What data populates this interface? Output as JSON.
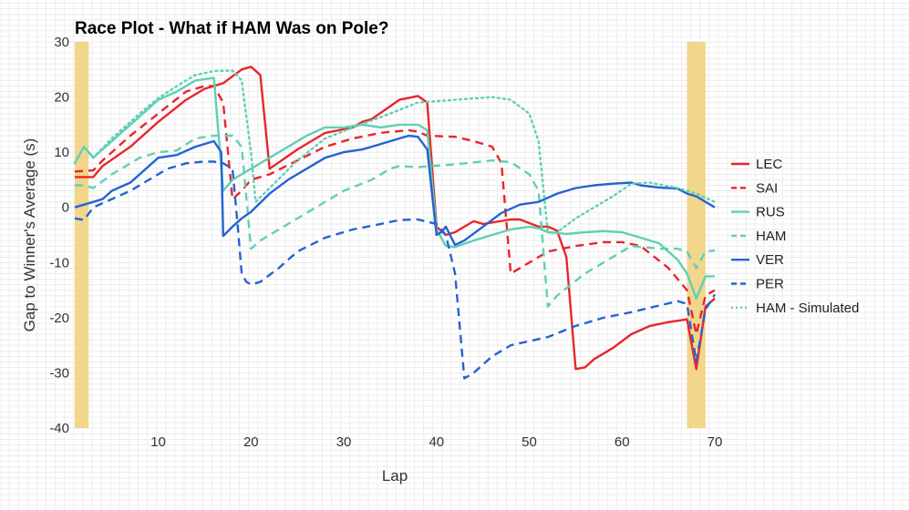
{
  "chart_data": {
    "type": "line",
    "title": "Race Plot - What if HAM Was on Pole?",
    "xlabel": "Lap",
    "ylabel": "Gap to Winner's Average (s)",
    "xlim": [
      1,
      70
    ],
    "ylim": [
      -40,
      30
    ],
    "xticks": [
      10,
      20,
      30,
      40,
      50,
      60,
      70
    ],
    "yticks": [
      30,
      20,
      10,
      0,
      -10,
      -20,
      -30,
      -40
    ],
    "grid": true,
    "legend_position": "right",
    "highlight_laps": [
      [
        1,
        2.5
      ],
      [
        67,
        69
      ]
    ],
    "highlight_color": "#f0d27e",
    "series": [
      {
        "name": "LEC",
        "color": "#e8262b",
        "style": "solid",
        "points": [
          [
            1,
            5.5
          ],
          [
            3,
            5.5
          ],
          [
            4,
            7.5
          ],
          [
            7,
            11
          ],
          [
            10,
            15.5
          ],
          [
            13,
            19.5
          ],
          [
            15,
            21.5
          ],
          [
            17,
            22.5
          ],
          [
            19,
            25
          ],
          [
            20,
            25.5
          ],
          [
            21,
            24
          ],
          [
            22,
            7
          ],
          [
            25,
            10.5
          ],
          [
            28,
            13.5
          ],
          [
            31,
            14.5
          ],
          [
            32,
            15.5
          ],
          [
            33,
            16
          ],
          [
            36,
            19.5
          ],
          [
            38,
            20.2
          ],
          [
            39,
            19
          ],
          [
            40,
            -3.5
          ],
          [
            41,
            -5
          ],
          [
            42,
            -4.5
          ],
          [
            43,
            -3.5
          ],
          [
            44,
            -2.5
          ],
          [
            45,
            -3
          ],
          [
            48,
            -2.2
          ],
          [
            49,
            -2.2
          ],
          [
            51,
            -3.5
          ],
          [
            52,
            -3.5
          ],
          [
            53,
            -4.2
          ],
          [
            54,
            -9
          ],
          [
            55,
            -29.3
          ],
          [
            56,
            -29
          ],
          [
            57,
            -27.5
          ],
          [
            59,
            -25.5
          ],
          [
            61,
            -23
          ],
          [
            63,
            -21.5
          ],
          [
            65,
            -20.8
          ],
          [
            67,
            -20.3
          ],
          [
            68,
            -29.3
          ],
          [
            69,
            -18
          ],
          [
            70,
            -16.5
          ]
        ]
      },
      {
        "name": "SAI",
        "color": "#e8262b",
        "style": "dashed",
        "points": [
          [
            1,
            6.5
          ],
          [
            3,
            6.7
          ],
          [
            4,
            8.5
          ],
          [
            7,
            13
          ],
          [
            10,
            17
          ],
          [
            13,
            21
          ],
          [
            15,
            22
          ],
          [
            16,
            22
          ],
          [
            17,
            19
          ],
          [
            18,
            1.5
          ],
          [
            19,
            3
          ],
          [
            20,
            5
          ],
          [
            22,
            6
          ],
          [
            25,
            8.5
          ],
          [
            28,
            11
          ],
          [
            31,
            12.5
          ],
          [
            34,
            13.5
          ],
          [
            37,
            14
          ],
          [
            38,
            13.7
          ],
          [
            39,
            13
          ],
          [
            42,
            12.8
          ],
          [
            44,
            12
          ],
          [
            46,
            11
          ],
          [
            47,
            8
          ],
          [
            48,
            -12
          ],
          [
            50,
            -10
          ],
          [
            52,
            -8
          ],
          [
            55,
            -7
          ],
          [
            58,
            -6.3
          ],
          [
            60,
            -6.3
          ],
          [
            62,
            -7
          ],
          [
            65,
            -11
          ],
          [
            67,
            -15
          ],
          [
            68,
            -23
          ],
          [
            69,
            -16
          ],
          [
            70,
            -15
          ]
        ]
      },
      {
        "name": "RUS",
        "color": "#5fd0b4",
        "style": "solid",
        "points": [
          [
            1,
            8
          ],
          [
            2,
            11
          ],
          [
            3,
            9
          ],
          [
            5,
            12
          ],
          [
            8,
            16.5
          ],
          [
            10,
            19.5
          ],
          [
            12,
            21
          ],
          [
            14,
            23
          ],
          [
            16,
            23.5
          ],
          [
            17,
            3
          ],
          [
            18,
            5
          ],
          [
            20,
            7
          ],
          [
            22,
            9
          ],
          [
            24,
            11
          ],
          [
            26,
            13
          ],
          [
            28,
            14.5
          ],
          [
            30,
            14.5
          ],
          [
            32,
            15
          ],
          [
            34,
            14.5
          ],
          [
            36,
            15
          ],
          [
            38,
            15
          ],
          [
            39,
            14
          ],
          [
            40,
            -4
          ],
          [
            41,
            -7
          ],
          [
            42,
            -7.2
          ],
          [
            44,
            -6
          ],
          [
            46,
            -5
          ],
          [
            48,
            -4
          ],
          [
            50,
            -3.5
          ],
          [
            51,
            -3.8
          ],
          [
            52,
            -4.5
          ],
          [
            54,
            -4.8
          ],
          [
            56,
            -4.5
          ],
          [
            58,
            -4.3
          ],
          [
            60,
            -4.5
          ],
          [
            62,
            -5.5
          ],
          [
            64,
            -6.5
          ],
          [
            66,
            -9.5
          ],
          [
            67,
            -12
          ],
          [
            68,
            -16.5
          ],
          [
            69,
            -12.5
          ],
          [
            70,
            -12.5
          ]
        ]
      },
      {
        "name": "HAM",
        "color": "#5fd0b4",
        "style": "dashed",
        "points": [
          [
            1,
            4
          ],
          [
            2,
            4
          ],
          [
            3,
            3.5
          ],
          [
            5,
            6
          ],
          [
            8,
            9
          ],
          [
            10,
            10
          ],
          [
            12,
            10.3
          ],
          [
            14,
            12.5
          ],
          [
            16,
            13
          ],
          [
            18,
            13
          ],
          [
            19,
            11
          ],
          [
            20,
            -7.5
          ],
          [
            21,
            -6
          ],
          [
            24,
            -3
          ],
          [
            27,
            0
          ],
          [
            30,
            3
          ],
          [
            33,
            5
          ],
          [
            35,
            7
          ],
          [
            36,
            7.5
          ],
          [
            38,
            7.3
          ],
          [
            42,
            7.8
          ],
          [
            46,
            8.5
          ],
          [
            48,
            8.2
          ],
          [
            50,
            6
          ],
          [
            51,
            3
          ],
          [
            52,
            -18
          ],
          [
            53,
            -16
          ],
          [
            56,
            -12
          ],
          [
            59,
            -9
          ],
          [
            61,
            -7
          ],
          [
            64,
            -7.5
          ],
          [
            66,
            -7.5
          ],
          [
            67,
            -8
          ],
          [
            68,
            -11
          ],
          [
            69,
            -8
          ],
          [
            70,
            -7.8
          ]
        ]
      },
      {
        "name": "VER",
        "color": "#2463d1",
        "style": "solid",
        "points": [
          [
            1,
            0
          ],
          [
            3,
            1
          ],
          [
            4,
            1.5
          ],
          [
            5,
            3
          ],
          [
            7,
            4.5
          ],
          [
            9,
            7.5
          ],
          [
            10,
            9
          ],
          [
            12,
            9.5
          ],
          [
            14,
            11
          ],
          [
            16,
            12
          ],
          [
            16.8,
            10
          ],
          [
            17,
            -5.2
          ],
          [
            18,
            -3.5
          ],
          [
            19,
            -2
          ],
          [
            20,
            -0.8
          ],
          [
            22,
            2.5
          ],
          [
            24,
            5
          ],
          [
            26,
            7
          ],
          [
            28,
            9
          ],
          [
            30,
            10
          ],
          [
            32,
            10.5
          ],
          [
            34,
            11.5
          ],
          [
            36,
            12.5
          ],
          [
            37,
            13
          ],
          [
            38,
            12.8
          ],
          [
            39,
            10.5
          ],
          [
            40,
            -5
          ],
          [
            40.5,
            -4.5
          ],
          [
            41,
            -3.5
          ],
          [
            42,
            -6.8
          ],
          [
            43,
            -6
          ],
          [
            45,
            -3.5
          ],
          [
            47,
            -1
          ],
          [
            49,
            0.5
          ],
          [
            51,
            1
          ],
          [
            53,
            2.5
          ],
          [
            55,
            3.5
          ],
          [
            57,
            4
          ],
          [
            59,
            4.3
          ],
          [
            61,
            4.5
          ],
          [
            62,
            4
          ],
          [
            64,
            3.6
          ],
          [
            66,
            3.4
          ],
          [
            67,
            2.5
          ],
          [
            68,
            2
          ],
          [
            70,
            0
          ]
        ]
      },
      {
        "name": "PER",
        "color": "#2463d1",
        "style": "dashed",
        "points": [
          [
            1,
            -2
          ],
          [
            2,
            -2.3
          ],
          [
            3,
            0
          ],
          [
            5,
            1.5
          ],
          [
            7,
            3
          ],
          [
            9,
            5
          ],
          [
            11,
            7
          ],
          [
            13,
            8
          ],
          [
            15,
            8.3
          ],
          [
            16,
            8.3
          ],
          [
            17,
            8
          ],
          [
            18,
            7
          ],
          [
            18.5,
            -2
          ],
          [
            19,
            -12
          ],
          [
            19.5,
            -13.5
          ],
          [
            20,
            -14
          ],
          [
            21,
            -13.5
          ],
          [
            23,
            -11
          ],
          [
            25,
            -8
          ],
          [
            28,
            -5.5
          ],
          [
            31,
            -4
          ],
          [
            34,
            -3
          ],
          [
            36,
            -2.3
          ],
          [
            38,
            -2.2
          ],
          [
            40,
            -3
          ],
          [
            41,
            -5
          ],
          [
            42,
            -12
          ],
          [
            43,
            -31
          ],
          [
            44,
            -30
          ],
          [
            46,
            -27
          ],
          [
            48,
            -25
          ],
          [
            52,
            -23.5
          ],
          [
            55,
            -21.5
          ],
          [
            58,
            -20
          ],
          [
            61,
            -19
          ],
          [
            64,
            -17.8
          ],
          [
            66,
            -17
          ],
          [
            67,
            -17.5
          ],
          [
            68,
            -28
          ],
          [
            69,
            -18.5
          ],
          [
            70,
            -15.8
          ]
        ]
      },
      {
        "name": "HAM - Simulated",
        "color": "#5fd0b4",
        "style": "dotted",
        "points": [
          [
            1,
            8
          ],
          [
            2,
            11
          ],
          [
            3,
            9
          ],
          [
            5,
            12.5
          ],
          [
            8,
            17
          ],
          [
            10,
            19.8
          ],
          [
            12,
            22
          ],
          [
            14,
            24
          ],
          [
            16,
            24.7
          ],
          [
            18,
            24.8
          ],
          [
            19,
            23
          ],
          [
            20,
            10
          ],
          [
            20.5,
            1
          ],
          [
            22,
            3.5
          ],
          [
            25,
            8.5
          ],
          [
            28,
            12.5
          ],
          [
            31,
            14.5
          ],
          [
            35,
            17
          ],
          [
            38,
            19
          ],
          [
            42,
            19.5
          ],
          [
            46,
            20
          ],
          [
            48,
            19.5
          ],
          [
            50,
            17
          ],
          [
            51,
            12
          ],
          [
            52,
            -4.5
          ],
          [
            53,
            -4.5
          ],
          [
            55,
            -2
          ],
          [
            57,
            0
          ],
          [
            59,
            2
          ],
          [
            61,
            4.3
          ],
          [
            63,
            4.5
          ],
          [
            66,
            3.5
          ],
          [
            68,
            2.5
          ],
          [
            70,
            1
          ]
        ]
      }
    ]
  }
}
